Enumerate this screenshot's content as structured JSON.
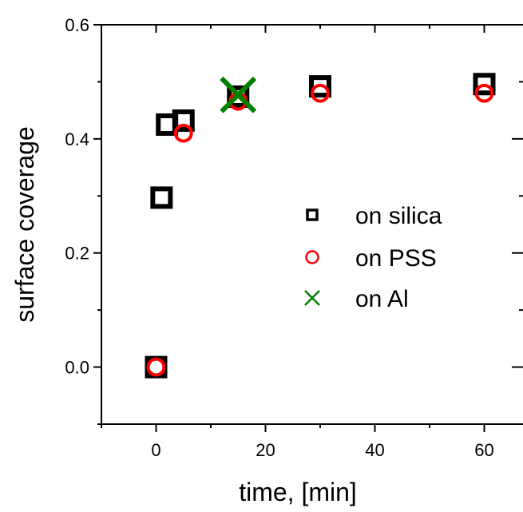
{
  "chart_data": {
    "type": "scatter",
    "title": "",
    "xlabel": "time, [min]",
    "ylabel": "surface coverage",
    "xlim": [
      -10,
      70
    ],
    "ylim": [
      -0.1,
      0.6
    ],
    "xticks": [
      "0",
      "20",
      "40",
      "60"
    ],
    "xtick_values": [
      0,
      20,
      40,
      60
    ],
    "yticks": [
      "0.0",
      "0.2",
      "0.4",
      "0.6"
    ],
    "ytick_values": [
      0.0,
      0.2,
      0.4,
      0.6
    ],
    "grid": false,
    "legend_position": "center-right",
    "series": [
      {
        "name": "on silica",
        "marker": "square",
        "color": "#000000",
        "x": [
          0,
          1,
          2,
          5,
          15,
          30,
          60
        ],
        "y": [
          0.0,
          0.297,
          0.425,
          0.432,
          0.474,
          0.492,
          0.496
        ]
      },
      {
        "name": "on PSS",
        "marker": "circle",
        "color": "#ff0000",
        "x": [
          0,
          5,
          15,
          30,
          60
        ],
        "y": [
          0.0,
          0.41,
          0.466,
          0.48,
          0.48
        ]
      },
      {
        "name": "on Al",
        "marker": "x",
        "color": "#008000",
        "x": [
          15
        ],
        "y": [
          0.477
        ]
      }
    ]
  }
}
